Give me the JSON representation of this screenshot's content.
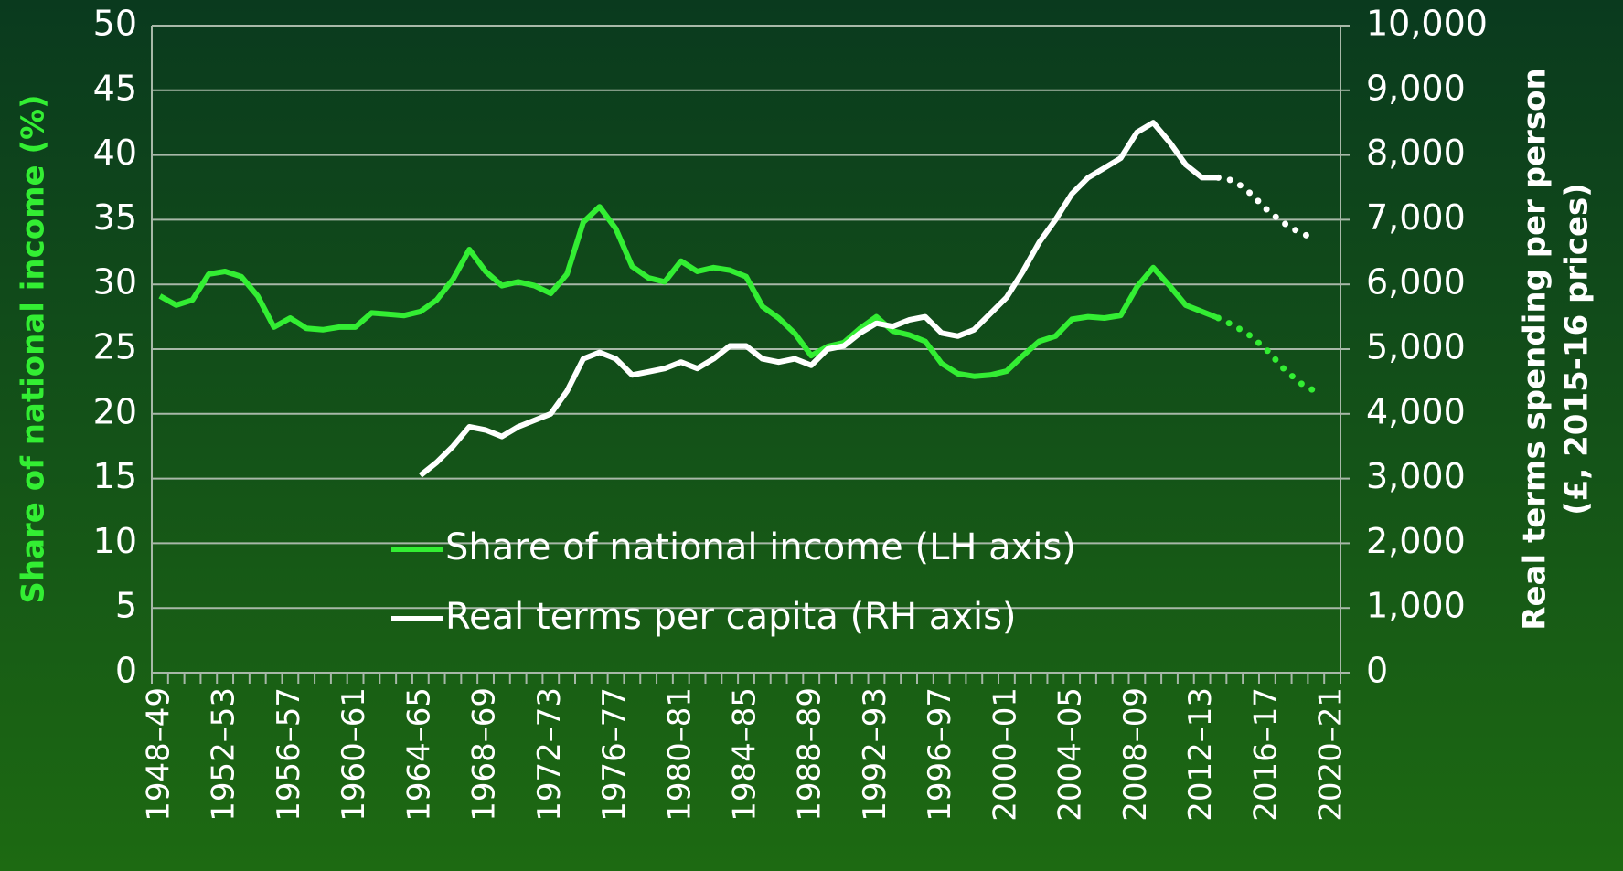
{
  "chart_data": {
    "type": "line",
    "categories": [
      "1948–49",
      null,
      null,
      null,
      "1952–53",
      null,
      null,
      null,
      "1956–57",
      null,
      null,
      null,
      "1960–61",
      null,
      null,
      null,
      "1964–65",
      null,
      null,
      null,
      "1968–69",
      null,
      null,
      null,
      "1972–73",
      null,
      null,
      null,
      "1976–77",
      null,
      null,
      null,
      "1980–81",
      null,
      null,
      null,
      "1984–85",
      null,
      null,
      null,
      "1988–89",
      null,
      null,
      null,
      "1992–93",
      null,
      null,
      null,
      "1996–97",
      null,
      null,
      null,
      "2000–01",
      null,
      null,
      null,
      "2004–05",
      null,
      null,
      null,
      "2008–09",
      null,
      null,
      null,
      "2012–13",
      null,
      null,
      null,
      "2016–17",
      null,
      null,
      null,
      "2020–21"
    ],
    "series": [
      {
        "name": "Share of national income (LH axis)",
        "color": "#33ee33",
        "axis": "y",
        "dotted_from": 66,
        "values": [
          29.1,
          28.4,
          28.8,
          30.8,
          31.0,
          30.6,
          29.1,
          26.7,
          27.4,
          26.6,
          26.5,
          26.7,
          26.7,
          27.8,
          27.7,
          27.6,
          27.9,
          28.8,
          30.4,
          32.7,
          31.0,
          29.9,
          30.2,
          29.9,
          29.3,
          30.8,
          34.8,
          36.0,
          34.3,
          31.4,
          30.5,
          30.2,
          31.8,
          31.0,
          31.3,
          31.1,
          30.6,
          28.3,
          27.4,
          26.2,
          24.5,
          25.2,
          25.5,
          26.6,
          27.5,
          26.4,
          26.1,
          25.6,
          23.9,
          23.1,
          22.9,
          23.0,
          23.3,
          24.5,
          25.6,
          26.0,
          27.3,
          27.5,
          27.4,
          27.6,
          29.8,
          31.3,
          29.9,
          28.4,
          27.9,
          27.4,
          26.8,
          26.0,
          24.9,
          23.5,
          22.4,
          21.7,
          null
        ]
      },
      {
        "name": "Real terms per capita (RH axis)",
        "color": "#ffffff",
        "axis": "y2",
        "dotted_from": 66,
        "values": [
          null,
          null,
          null,
          null,
          null,
          null,
          null,
          null,
          null,
          null,
          null,
          null,
          null,
          null,
          null,
          null,
          3050,
          3250,
          3500,
          3800,
          3750,
          3650,
          3800,
          3900,
          4000,
          4350,
          4850,
          4950,
          4850,
          4600,
          4650,
          4700,
          4800,
          4700,
          4850,
          5050,
          5050,
          4850,
          4800,
          4850,
          4750,
          5000,
          5050,
          5250,
          5400,
          5350,
          5450,
          5500,
          5250,
          5200,
          5300,
          5550,
          5800,
          6200,
          6650,
          7000,
          7400,
          7650,
          7800,
          7950,
          8350,
          8500,
          8200,
          7850,
          7650,
          7650,
          7600,
          7400,
          7150,
          6950,
          6800,
          6700,
          null
        ]
      }
    ],
    "ylabel": "Share of national income (%)",
    "y2label": [
      "Real terms spending per person",
      "(£, 2015-16 prices)"
    ],
    "ylim": [
      0,
      50
    ],
    "yticks": [
      0,
      5,
      10,
      15,
      20,
      25,
      30,
      35,
      40,
      45,
      50
    ],
    "y2lim": [
      0,
      10000
    ],
    "y2ticks": [
      0,
      {
        "value": 1000,
        "label": "1,000"
      },
      {
        "value": 2000,
        "label": "2,000"
      },
      {
        "value": 3000,
        "label": "3,000"
      },
      {
        "value": 4000,
        "label": "4,000"
      },
      {
        "value": 5000,
        "label": "5,000"
      },
      {
        "value": 6000,
        "label": "6,000"
      },
      {
        "value": 7000,
        "label": "7,000"
      },
      {
        "value": 8000,
        "label": "8,000"
      },
      {
        "value": 9000,
        "label": "9,000"
      },
      {
        "value": 10000,
        "label": "10,000"
      }
    ],
    "grid": true
  }
}
